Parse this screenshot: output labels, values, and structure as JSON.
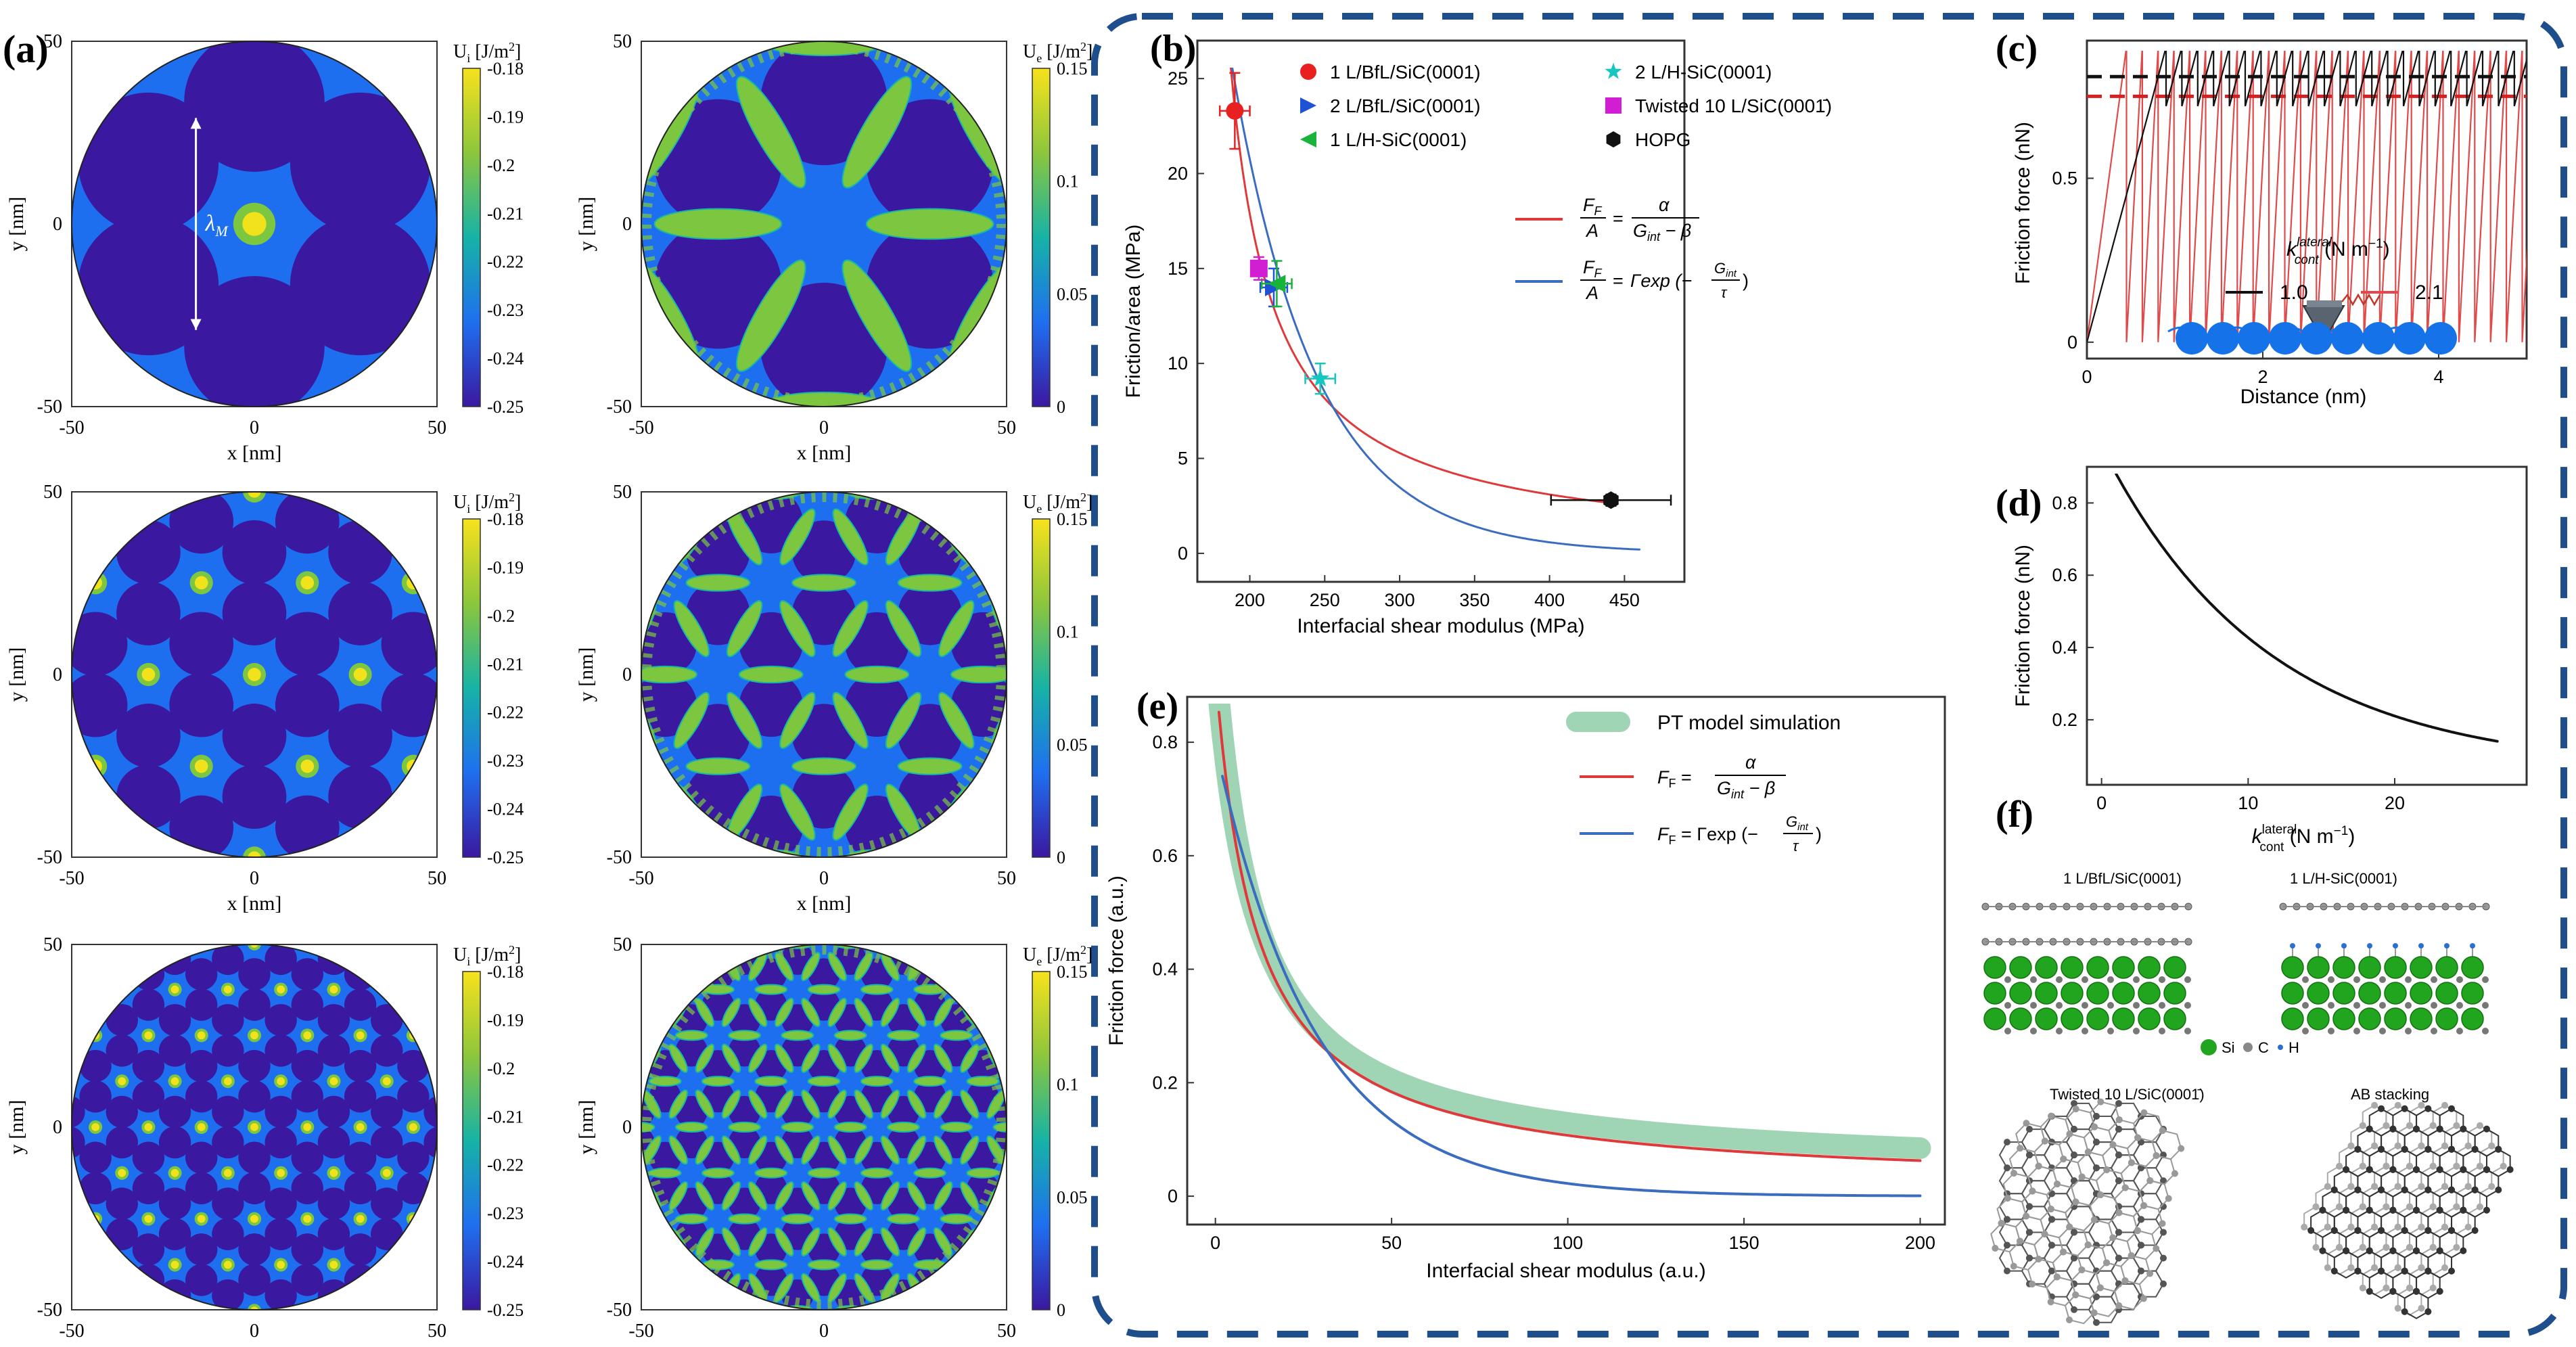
{
  "panel_labels": {
    "a": "(a)",
    "b": "(b)",
    "c": "(c)",
    "d": "(d)",
    "e": "(e)",
    "f": "(f)"
  },
  "maps": {
    "axis_x": "x [nm]",
    "axis_y": "y [nm]",
    "xticks": [
      "-50",
      "0",
      "50"
    ],
    "yticks": [
      "50",
      "0",
      "-50"
    ],
    "ui_label": "U",
    "ui_sub": "i",
    "ue_label": "U",
    "ue_sub": "e",
    "unit": " [J/m",
    "unit_sup": "2",
    "unit_close": "]",
    "ui_ticks": [
      "-0.18",
      "-0.19",
      "-0.2",
      "-0.21",
      "-0.22",
      "-0.23",
      "-0.24",
      "-0.25"
    ],
    "ue_ticks": [
      "0.15",
      "0.1",
      "0.05",
      "0"
    ],
    "lambda": "λ",
    "lambda_sub": "M",
    "rows": [
      {
        "moire_period_nm": 58.0
      },
      {
        "moire_period_nm": 29.0
      },
      {
        "moire_period_nm": 14.5
      }
    ],
    "colors": {
      "dark": "#3a18a0",
      "blue": "#1e6ff0",
      "green": "#7cc640",
      "yellow": "#f2e21c",
      "teal": "#18b6a6"
    }
  },
  "chart_data": [
    {
      "id": "b",
      "type": "scatter",
      "xlabel": "Interfacial shear modulus (MPa)",
      "ylabel": "Friction/area (MPa)",
      "xlim": [
        165,
        490
      ],
      "ylim": [
        -1.5,
        27
      ],
      "xticks": [
        200,
        250,
        300,
        350,
        400,
        450
      ],
      "yticks": [
        0,
        5,
        10,
        15,
        20,
        25
      ],
      "points": [
        {
          "name": "1 L/BfL/SiC(0001)",
          "x": 190,
          "y": 23.3,
          "xerr": 10,
          "yerr": 2.0,
          "marker": "circle",
          "color": "#e8201f"
        },
        {
          "name": "2 L/BfL/SiC(0001)",
          "x": 216,
          "y": 14.0,
          "xerr": 9,
          "yerr": 1.0,
          "marker": "triangle-right",
          "color": "#1f53d6"
        },
        {
          "name": "1 L/H-SiC(0001)",
          "x": 218,
          "y": 14.2,
          "xerr": 10,
          "yerr": 1.2,
          "marker": "triangle-left",
          "color": "#19b33a"
        },
        {
          "name": "2 L/H-SiC(0001)",
          "x": 247,
          "y": 9.2,
          "xerr": 10,
          "yerr": 0.8,
          "marker": "star",
          "color": "#16c6c0"
        },
        {
          "name": "Twisted 10 L/SiC(0001̄)",
          "x": 206,
          "y": 15.0,
          "xerr": 5,
          "yerr": 0.6,
          "marker": "square",
          "color": "#d21ed2"
        },
        {
          "name": "HOPG",
          "x": 441,
          "y": 2.8,
          "xerr": 40,
          "yerr": 0.3,
          "marker": "hexagon",
          "color": "#111111"
        }
      ],
      "series": [
        {
          "name": "inverse",
          "alpha": 750,
          "beta": 158,
          "x_range": [
            186,
            445
          ],
          "color": "#e0393b"
        },
        {
          "name": "exp",
          "Gamma": 210,
          "tau": 56,
          "x_range": [
            188,
            460
          ],
          "color": "#3a6cc0"
        }
      ],
      "eq1": {
        "lhs_num": "F",
        "lhs_num_sub": "F",
        "lhs_den": "A",
        "rhs_num": "α",
        "rhs_den_a": "G",
        "rhs_den_sub": "int",
        "rhs_den_b": " − β"
      },
      "eq2": {
        "lhs_num": "F",
        "lhs_num_sub": "F",
        "lhs_den": "A",
        "rhs": "Γexp (−",
        "frac_num": "G",
        "frac_num_sub": "int",
        "frac_den": "τ",
        "close": ")"
      }
    },
    {
      "id": "c",
      "type": "line",
      "xlabel": "Distance (nm)",
      "ylabel": "Friction force (nN)",
      "xlim": [
        0,
        5
      ],
      "ylim": [
        -0.05,
        0.92
      ],
      "xticks": [
        0,
        2,
        4
      ],
      "yticks": [
        0,
        0.5
      ],
      "series": [
        {
          "name": "1.0",
          "k": 1.0,
          "color": "#111111",
          "peak": 0.9,
          "drop": 0.72,
          "period": 0.18,
          "avg": 0.81
        },
        {
          "name": "2.1",
          "k": 2.1,
          "color": "#e04a4a",
          "peak": 0.9,
          "drop": 0.0,
          "period": 0.18,
          "avg": 0.75
        }
      ],
      "legend_title": "k",
      "legend_title_sup": "lateral",
      "legend_title_sub": "cont",
      "legend_unit": " (N m",
      "legend_unit_sup": "−1",
      "legend_unit_close": ")"
    },
    {
      "id": "d",
      "type": "line",
      "xlabel_a": "k",
      "xlabel_sup": "lateral",
      "xlabel_sub": "cont",
      "xlabel_b": " (N m",
      "xlabel_unit_sup": "−1",
      "xlabel_c": ")",
      "ylabel": "Friction force (nN)",
      "xlim": [
        -1,
        29
      ],
      "ylim": [
        0.02,
        0.9
      ],
      "xticks": [
        0,
        10,
        20
      ],
      "yticks": [
        0.2,
        0.4,
        0.6,
        0.8
      ],
      "series": [
        {
          "name": "friction",
          "A": 0.87,
          "tau": 11.2,
          "x_range": [
            1,
            27
          ],
          "color": "#111111"
        }
      ]
    },
    {
      "id": "e",
      "type": "line",
      "xlabel": "Interfacial shear modulus (a.u.)",
      "ylabel": "Friction force (a.u.)",
      "xlim": [
        -8,
        207
      ],
      "ylim": [
        -0.05,
        0.88
      ],
      "xticks": [
        0,
        50,
        100,
        150,
        200
      ],
      "yticks": [
        0,
        0.2,
        0.4,
        0.6,
        0.8
      ],
      "series": [
        {
          "name": "PT model simulation",
          "alpha": 10.5,
          "beta": -11.5,
          "x_range": [
            1,
            200
          ],
          "color": "#9fd4b4"
        },
        {
          "name": "inverse",
          "alpha": 10.5,
          "beta": -11.5,
          "x_range": [
            1,
            200
          ],
          "color": "#e0393b",
          "offset": -0.022
        },
        {
          "name": "exp",
          "Gamma": 0.795,
          "tau": 28,
          "x_range": [
            1,
            200
          ],
          "color": "#3a6cc0"
        }
      ],
      "legend_sim": "PT model simulation",
      "eq1": {
        "lhs": "F",
        "lhs_sub": "F",
        "eq": " = ",
        "num": "α",
        "den_a": "G",
        "den_sub": "int",
        "den_b": " − β"
      },
      "eq2": {
        "lhs": "F",
        "lhs_sub": "F",
        "eq": " = Γexp (−",
        "num": "G",
        "num_sub": "int",
        "den": "τ",
        "close": ")"
      }
    }
  ],
  "panel_f": {
    "titles": [
      "1 L/BfL/SiC(0001)",
      "1 L/H-SiC(0001)",
      "Twisted 10 L/SiC(0001̄)",
      "AB stacking"
    ],
    "legend": [
      {
        "label": "Si",
        "color": "#21a51f"
      },
      {
        "label": "C",
        "color": "#888888"
      },
      {
        "label": "H",
        "color": "#2a6fd8"
      }
    ]
  }
}
